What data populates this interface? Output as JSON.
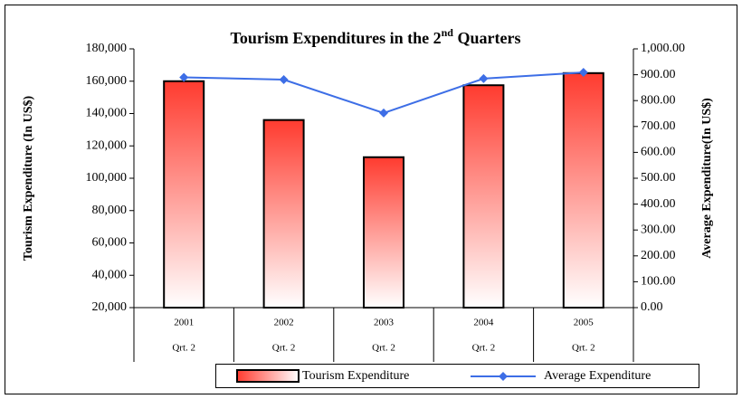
{
  "chart_data": {
    "type": "bar-line",
    "title_parts": [
      "Tourism Expenditures in the 2",
      "nd",
      " Quarters"
    ],
    "ylabel": "Tourism Expenditure (In US$)",
    "y2label": "Average Expenditure(In US$)",
    "categories": [
      "2001",
      "2002",
      "2003",
      "2004",
      "2005"
    ],
    "category_sublabels": [
      "Qrt. 2",
      "Qrt. 2",
      "Qrt. 2",
      "Qrt. 2",
      "Qrt. 2"
    ],
    "series": [
      {
        "name": "Tourism Expenditure",
        "type": "bar",
        "color": "#ff3b2f",
        "values": [
          160000,
          136000,
          113000,
          157500,
          165000
        ]
      },
      {
        "name": "Average Expenditure",
        "type": "line",
        "axis": "y2",
        "color": "#3d6ee6",
        "values": [
          890,
          881,
          752,
          885,
          909
        ]
      }
    ],
    "ylim": [
      20000,
      180000
    ],
    "yticks": [
      {
        "value": 20000,
        "label": "20,000"
      },
      {
        "value": 40000,
        "label": "40,000"
      },
      {
        "value": 60000,
        "label": "60,000"
      },
      {
        "value": 80000,
        "label": "80,000"
      },
      {
        "value": 100000,
        "label": "100,000"
      },
      {
        "value": 120000,
        "label": "120,000"
      },
      {
        "value": 140000,
        "label": "140,000"
      },
      {
        "value": 160000,
        "label": "160,000"
      },
      {
        "value": 180000,
        "label": "180,000"
      }
    ],
    "y2lim": [
      0,
      1000
    ],
    "y2ticks": [
      {
        "value": 0,
        "label": "0.00"
      },
      {
        "value": 100,
        "label": "100.00"
      },
      {
        "value": 200,
        "label": "200.00"
      },
      {
        "value": 300,
        "label": "300.00"
      },
      {
        "value": 400,
        "label": "400.00"
      },
      {
        "value": 500,
        "label": "500.00"
      },
      {
        "value": 600,
        "label": "600.00"
      },
      {
        "value": 700,
        "label": "700.00"
      },
      {
        "value": 800,
        "label": "800.00"
      },
      {
        "value": 900,
        "label": "900.00"
      },
      {
        "value": 1000,
        "label": "1,000.00"
      }
    ],
    "grid": false,
    "legend": "bottom"
  }
}
